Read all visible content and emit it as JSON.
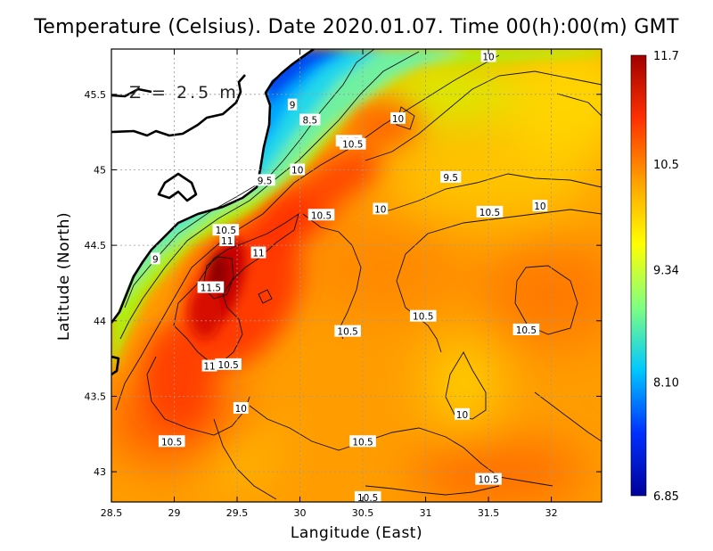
{
  "title": "Temperature (Celsius). Date 2020.01.07. Time 00(h):00(m) GMT",
  "xlabel": "Langitude (East)",
  "ylabel": "Latitude (North)",
  "depth_label": "Z = 2.5 m",
  "x_ticks": [
    "28.5",
    "29",
    "29.5",
    "30",
    "30.5",
    "31",
    "31.5",
    "32"
  ],
  "y_ticks": [
    "43",
    "43.5",
    "44",
    "44.5",
    "45",
    "45.5"
  ],
  "colorbar": {
    "labels": [
      "11.7",
      "10.5",
      "9.34",
      "8.10",
      "6.85"
    ],
    "min": 6.85,
    "max": 11.7,
    "stops": [
      "#00009a",
      "#0030ff",
      "#00c8ff",
      "#80ff80",
      "#ffff00",
      "#ffa000",
      "#ff3000",
      "#a00000"
    ]
  },
  "chart_data": {
    "type": "heatmap",
    "title": "Temperature (Celsius). Date 2020.01.07. Time 00(h):00(m) GMT",
    "xlabel": "Langitude (East)",
    "ylabel": "Latitude (North)",
    "xlim": [
      28.5,
      32.4
    ],
    "ylim": [
      42.8,
      45.8
    ],
    "value_range": [
      6.85,
      11.7
    ],
    "grid": true,
    "annotation": "Z = 2.5 m",
    "contour_labels": [
      {
        "lon": 31.5,
        "lat": 45.75,
        "text": "10"
      },
      {
        "lon": 29.94,
        "lat": 45.43,
        "text": "9"
      },
      {
        "lon": 30.08,
        "lat": 45.33,
        "text": "8.5"
      },
      {
        "lon": 30.78,
        "lat": 45.34,
        "text": "10"
      },
      {
        "lon": 30.39,
        "lat": 45.19,
        "text": "10.5"
      },
      {
        "lon": 30.42,
        "lat": 45.17,
        "text": "10.5"
      },
      {
        "lon": 29.98,
        "lat": 45.0,
        "text": "10"
      },
      {
        "lon": 31.2,
        "lat": 44.95,
        "text": "9.5"
      },
      {
        "lon": 29.72,
        "lat": 44.93,
        "text": "9.5"
      },
      {
        "lon": 30.64,
        "lat": 44.74,
        "text": "10"
      },
      {
        "lon": 31.91,
        "lat": 44.76,
        "text": "10"
      },
      {
        "lon": 31.51,
        "lat": 44.72,
        "text": "10.5"
      },
      {
        "lon": 30.17,
        "lat": 44.7,
        "text": "10.5"
      },
      {
        "lon": 29.41,
        "lat": 44.6,
        "text": "10.5"
      },
      {
        "lon": 29.42,
        "lat": 44.53,
        "text": "11"
      },
      {
        "lon": 29.67,
        "lat": 44.45,
        "text": "11"
      },
      {
        "lon": 28.85,
        "lat": 44.41,
        "text": "9"
      },
      {
        "lon": 29.29,
        "lat": 44.22,
        "text": "11.5"
      },
      {
        "lon": 30.98,
        "lat": 44.03,
        "text": "10.5"
      },
      {
        "lon": 31.8,
        "lat": 43.94,
        "text": "10.5"
      },
      {
        "lon": 30.38,
        "lat": 43.93,
        "text": "10.5"
      },
      {
        "lon": 29.43,
        "lat": 43.71,
        "text": "10.5"
      },
      {
        "lon": 29.28,
        "lat": 43.7,
        "text": "11"
      },
      {
        "lon": 29.53,
        "lat": 43.42,
        "text": "10"
      },
      {
        "lon": 31.29,
        "lat": 43.38,
        "text": "10"
      },
      {
        "lon": 28.98,
        "lat": 43.2,
        "text": "10.5"
      },
      {
        "lon": 30.5,
        "lat": 43.2,
        "text": "10.5"
      },
      {
        "lon": 31.5,
        "lat": 42.95,
        "text": "10.5"
      },
      {
        "lon": 30.54,
        "lat": 42.83,
        "text": "10.5"
      }
    ]
  }
}
